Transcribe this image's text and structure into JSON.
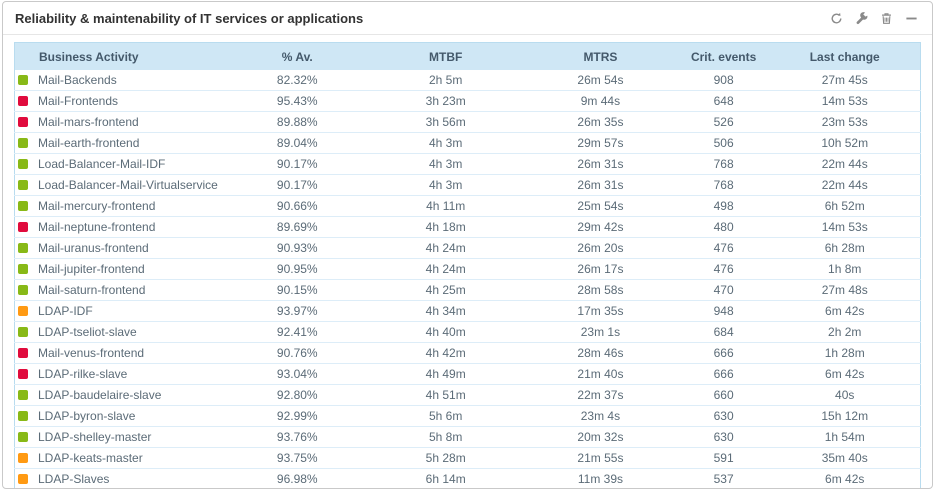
{
  "widget": {
    "title": "Reliability & maintenability of IT services or applications",
    "toolbar": {
      "refresh": "refresh",
      "configure": "configure",
      "delete": "delete",
      "minimize": "minimize"
    }
  },
  "colors": {
    "ok": "#88b917",
    "warning": "#ff9a13",
    "critical": "#e00b3d",
    "header_bg": "#cfe7f5",
    "row_border": "#ddedf8",
    "icon_gray": "#8a8a8a"
  },
  "table": {
    "columns": [
      "Business Activity",
      "% Av.",
      "MTBF",
      "MTRS",
      "Crit. events",
      "Last change"
    ],
    "rows": [
      {
        "status": "ok",
        "name": "Mail-Backends",
        "av": "82.32%",
        "mtbf": "2h 5m",
        "mtrs": "26m 54s",
        "crit": "908",
        "last": "27m 45s"
      },
      {
        "status": "critical",
        "name": "Mail-Frontends",
        "av": "95.43%",
        "mtbf": "3h 23m",
        "mtrs": "9m 44s",
        "crit": "648",
        "last": "14m 53s"
      },
      {
        "status": "critical",
        "name": "Mail-mars-frontend",
        "av": "89.88%",
        "mtbf": "3h 56m",
        "mtrs": "26m 35s",
        "crit": "526",
        "last": "23m 53s"
      },
      {
        "status": "ok",
        "name": "Mail-earth-frontend",
        "av": "89.04%",
        "mtbf": "4h 3m",
        "mtrs": "29m 57s",
        "crit": "506",
        "last": "10h 52m"
      },
      {
        "status": "ok",
        "name": "Load-Balancer-Mail-IDF",
        "av": "90.17%",
        "mtbf": "4h 3m",
        "mtrs": "26m 31s",
        "crit": "768",
        "last": "22m 44s"
      },
      {
        "status": "ok",
        "name": "Load-Balancer-Mail-Virtualservice",
        "av": "90.17%",
        "mtbf": "4h 3m",
        "mtrs": "26m 31s",
        "crit": "768",
        "last": "22m 44s"
      },
      {
        "status": "ok",
        "name": "Mail-mercury-frontend",
        "av": "90.66%",
        "mtbf": "4h 11m",
        "mtrs": "25m 54s",
        "crit": "498",
        "last": "6h 52m"
      },
      {
        "status": "critical",
        "name": "Mail-neptune-frontend",
        "av": "89.69%",
        "mtbf": "4h 18m",
        "mtrs": "29m 42s",
        "crit": "480",
        "last": "14m 53s"
      },
      {
        "status": "ok",
        "name": "Mail-uranus-frontend",
        "av": "90.93%",
        "mtbf": "4h 24m",
        "mtrs": "26m 20s",
        "crit": "476",
        "last": "6h 28m"
      },
      {
        "status": "ok",
        "name": "Mail-jupiter-frontend",
        "av": "90.95%",
        "mtbf": "4h 24m",
        "mtrs": "26m 17s",
        "crit": "476",
        "last": "1h 8m"
      },
      {
        "status": "ok",
        "name": "Mail-saturn-frontend",
        "av": "90.15%",
        "mtbf": "4h 25m",
        "mtrs": "28m 58s",
        "crit": "470",
        "last": "27m 48s"
      },
      {
        "status": "warning",
        "name": "LDAP-IDF",
        "av": "93.97%",
        "mtbf": "4h 34m",
        "mtrs": "17m 35s",
        "crit": "948",
        "last": "6m 42s"
      },
      {
        "status": "ok",
        "name": "LDAP-tseliot-slave",
        "av": "92.41%",
        "mtbf": "4h 40m",
        "mtrs": "23m 1s",
        "crit": "684",
        "last": "2h 2m"
      },
      {
        "status": "critical",
        "name": "Mail-venus-frontend",
        "av": "90.76%",
        "mtbf": "4h 42m",
        "mtrs": "28m 46s",
        "crit": "666",
        "last": "1h 28m"
      },
      {
        "status": "critical",
        "name": "LDAP-rilke-slave",
        "av": "93.04%",
        "mtbf": "4h 49m",
        "mtrs": "21m 40s",
        "crit": "666",
        "last": "6m 42s"
      },
      {
        "status": "ok",
        "name": "LDAP-baudelaire-slave",
        "av": "92.80%",
        "mtbf": "4h 51m",
        "mtrs": "22m 37s",
        "crit": "660",
        "last": "40s"
      },
      {
        "status": "ok",
        "name": "LDAP-byron-slave",
        "av": "92.99%",
        "mtbf": "5h 6m",
        "mtrs": "23m 4s",
        "crit": "630",
        "last": "15h 12m"
      },
      {
        "status": "ok",
        "name": "LDAP-shelley-master",
        "av": "93.76%",
        "mtbf": "5h 8m",
        "mtrs": "20m 32s",
        "crit": "630",
        "last": "1h 54m"
      },
      {
        "status": "warning",
        "name": "LDAP-keats-master",
        "av": "93.75%",
        "mtbf": "5h 28m",
        "mtrs": "21m 55s",
        "crit": "591",
        "last": "35m 40s"
      },
      {
        "status": "warning",
        "name": "LDAP-Slaves",
        "av": "96.98%",
        "mtbf": "6h 14m",
        "mtrs": "11m 39s",
        "crit": "537",
        "last": "6m 42s"
      }
    ]
  }
}
